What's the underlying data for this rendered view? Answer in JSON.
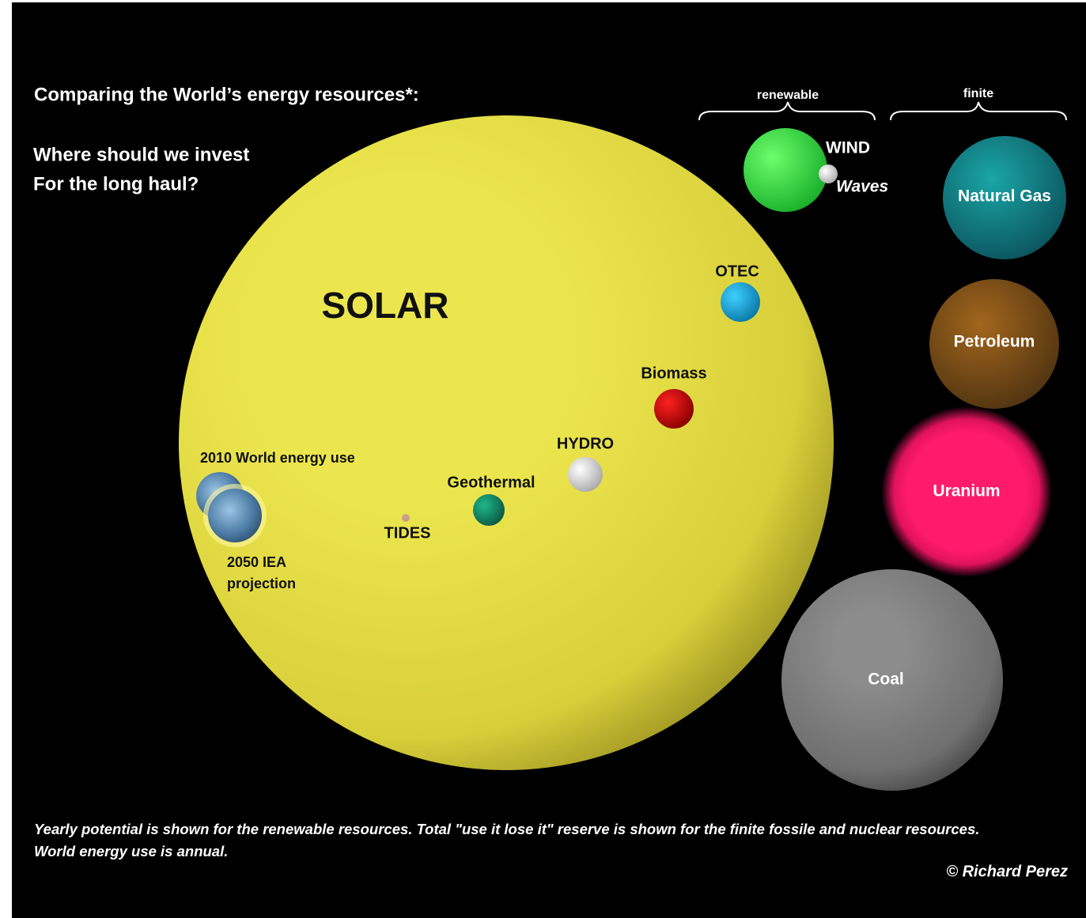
{
  "header": {
    "title": "Comparing the World’s energy resources*:",
    "subtitle_lines": [
      "Where should we invest",
      "For the long haul?"
    ]
  },
  "groups": {
    "renewable": "renewable",
    "finite": "finite"
  },
  "resources": {
    "solar": "SOLAR",
    "wind": "WIND",
    "waves": "Waves",
    "otec": "OTEC",
    "biomass": "Biomass",
    "hydro": "HYDRO",
    "geothermal": "Geothermal",
    "tides": "TIDES",
    "natural_gas": "Natural Gas",
    "petroleum": "Petroleum",
    "uranium": "Uranium",
    "coal": "Coal"
  },
  "world_use": {
    "use_2010": "2010 World energy use",
    "projection_2050_lines": [
      "2050 IEA",
      "projection"
    ]
  },
  "footer": {
    "note_lines": [
      "Yearly potential is shown for the renewable resources. Total \"use it lose it\" reserve is shown for the finite fossile and nuclear resources.",
      "World energy use is annual."
    ],
    "credit": "© Richard Perez"
  }
}
